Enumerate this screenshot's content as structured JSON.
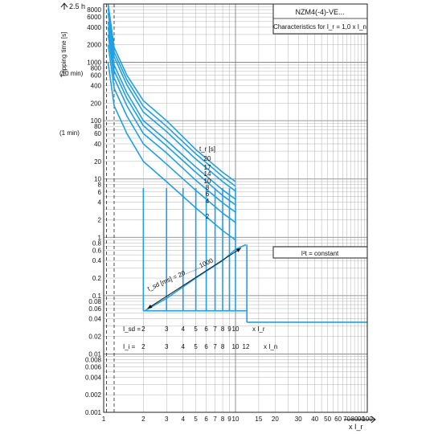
{
  "chart_data": {
    "type": "line",
    "title": "NZM4(-4)-VE...",
    "subtitle": "Characteristics for I_r = 1,0 x I_n",
    "ylabel": "Tripping time [s]",
    "ylabel_top": "2.5 h",
    "ylabel_extra": [
      "(10 min)",
      "(1 min)"
    ],
    "xlabel": "x I_r",
    "log_x": true,
    "log_y": true,
    "xlim": [
      1,
      100
    ],
    "ylim": [
      0.001,
      10000
    ],
    "x_ticks": [
      "1",
      "2",
      "3",
      "4",
      "5",
      "6",
      "7",
      "8",
      "9",
      "10",
      "15",
      "20",
      "30",
      "40",
      "50",
      "60",
      "70",
      "80",
      "90",
      "100"
    ],
    "y_ticks": [
      "8000",
      "6000",
      "4000",
      "2000",
      "1000",
      "800",
      "600",
      "400",
      "200",
      "100",
      "80",
      "60",
      "40",
      "20",
      "10",
      "8",
      "6",
      "4",
      "2",
      "1",
      "0.8",
      "0.6",
      "0.4",
      "0.2",
      "0.1",
      "0.08",
      "0.06",
      "0.04",
      "0.02",
      "0.01",
      "0.008",
      "0.006",
      "0.004",
      "0.002",
      "0.001"
    ],
    "tr_label": "t_r [s]",
    "tr_values": [
      "20",
      "17",
      "14",
      "10",
      "8",
      "6",
      "4",
      "2"
    ],
    "tsd_label": "t_sd [ms] = 20.........1000",
    "i2t_label": "I²t = constant",
    "isd_label": "I_sd =",
    "isd_values": [
      "2",
      "3",
      "4",
      "5",
      "6",
      "7",
      "8",
      "9",
      "10"
    ],
    "isd_unit": "x I_r",
    "ii_label": "I_i =",
    "ii_values": [
      "2",
      "3",
      "4",
      "5",
      "6",
      "7",
      "8",
      "10",
      "12"
    ],
    "ii_unit": "x I_n",
    "grid": true,
    "line_color": "#1ea0e6",
    "series": [
      {
        "name": "20",
        "x": [
          1.08,
          1.2,
          1.5,
          2.0,
          3.0,
          5.0,
          8.0,
          10.0
        ],
        "y": [
          10000,
          1800,
          600,
          220,
          100,
          32,
          13,
          9
        ]
      },
      {
        "name": "17",
        "x": [
          1.08,
          1.2,
          1.5,
          2.0,
          3.0,
          5.0,
          8.0,
          10.0
        ],
        "y": [
          8500,
          1500,
          500,
          175,
          80,
          27,
          11,
          7.5
        ]
      },
      {
        "name": "14",
        "x": [
          1.08,
          1.2,
          1.5,
          2.0,
          3.0,
          5.0,
          8.0,
          10.0
        ],
        "y": [
          7000,
          1250,
          410,
          140,
          65,
          22,
          9,
          6.2
        ]
      },
      {
        "name": "10",
        "x": [
          1.08,
          1.2,
          1.5,
          2.0,
          3.0,
          5.0,
          8.0,
          10.0
        ],
        "y": [
          5000,
          900,
          300,
          100,
          46,
          16,
          6.5,
          4.5
        ]
      },
      {
        "name": "8",
        "x": [
          1.08,
          1.2,
          1.5,
          2.0,
          3.0,
          5.0,
          8.0,
          10.0
        ],
        "y": [
          4000,
          720,
          240,
          82,
          37,
          13,
          5.2,
          3.6
        ]
      },
      {
        "name": "6",
        "x": [
          1.08,
          1.2,
          1.5,
          2.0,
          3.0,
          5.0,
          8.0,
          10.0
        ],
        "y": [
          3000,
          540,
          180,
          60,
          28,
          9.5,
          3.9,
          2.7
        ]
      },
      {
        "name": "4",
        "x": [
          1.08,
          1.2,
          1.5,
          2.0,
          3.0,
          5.0,
          8.0,
          10.0
        ],
        "y": [
          2000,
          360,
          120,
          40,
          18,
          6.4,
          2.6,
          1.8
        ]
      },
      {
        "name": "2",
        "x": [
          1.08,
          1.2,
          1.5,
          2.0,
          3.0,
          5.0,
          8.0,
          10.0
        ],
        "y": [
          1000,
          180,
          60,
          20,
          9,
          3.2,
          1.3,
          0.9
        ]
      }
    ],
    "isd_series": {
      "x": [
        2,
        3,
        4,
        5,
        6,
        7,
        8,
        9,
        10
      ],
      "y_top": [
        7,
        7,
        7,
        7,
        7,
        7,
        7,
        7,
        7
      ],
      "y_bottom": [
        0.055,
        0.055,
        0.055,
        0.055,
        0.055,
        0.055,
        0.055,
        0.055,
        0.055
      ]
    },
    "i2t_series": {
      "x": [
        2.05,
        3,
        5,
        8,
        10,
        12
      ],
      "y": [
        0.055,
        0.09,
        0.2,
        0.4,
        0.62,
        0.75
      ]
    },
    "instantaneous": {
      "x": [
        12.2,
        100
      ],
      "y": [
        0.035,
        0.035
      ]
    }
  }
}
